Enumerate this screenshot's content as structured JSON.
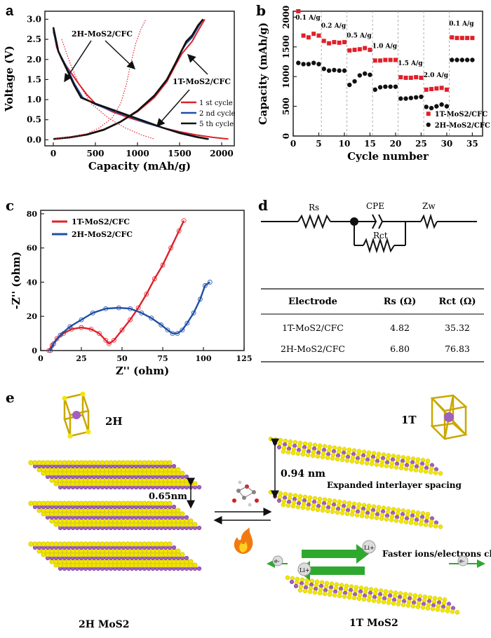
{
  "colors": {
    "red": "#e0202a",
    "blue": "#1f4fa8",
    "black": "#111111",
    "yellow": "#f2e600",
    "purple": "#a060c0",
    "green": "#2fa82f"
  },
  "chart_data": [
    {
      "panel": "a",
      "type": "line",
      "xlabel": "Capacity (mAh/g)",
      "ylabel": "Voltage (V)",
      "xlim": [
        -100,
        2150
      ],
      "ylim": [
        -0.15,
        3.2
      ],
      "xticks": [
        "0",
        "500",
        "1000",
        "1500",
        "2000"
      ],
      "yticks": [
        "0.0",
        "0.5",
        "1.0",
        "1.5",
        "2.0",
        "2.5",
        "3.0"
      ],
      "annotations": [
        "2H-MoS2/CFC",
        "1T-MoS2/CFC"
      ],
      "legend_position": "bottom-right",
      "series": [
        {
          "name": "1 st cycle",
          "color": "#e0202a",
          "discharge": [
            [
              0,
              2.75
            ],
            [
              40,
              2.3
            ],
            [
              100,
              2.0
            ],
            [
              200,
              1.7
            ],
            [
              300,
              1.4
            ],
            [
              400,
              1.12
            ],
            [
              500,
              0.9
            ],
            [
              700,
              0.7
            ],
            [
              900,
              0.55
            ],
            [
              1100,
              0.42
            ],
            [
              1300,
              0.3
            ],
            [
              1500,
              0.2
            ],
            [
              1700,
              0.12
            ],
            [
              1900,
              0.06
            ],
            [
              2080,
              0.02
            ]
          ],
          "charge": [
            [
              0,
              0.02
            ],
            [
              200,
              0.07
            ],
            [
              400,
              0.14
            ],
            [
              600,
              0.26
            ],
            [
              800,
              0.45
            ],
            [
              1000,
              0.7
            ],
            [
              1200,
              1.05
            ],
            [
              1350,
              1.45
            ],
            [
              1450,
              1.85
            ],
            [
              1530,
              2.15
            ],
            [
              1590,
              2.3
            ],
            [
              1650,
              2.45
            ],
            [
              1730,
              2.75
            ],
            [
              1800,
              3.0
            ]
          ]
        },
        {
          "name": "2 nd cycle",
          "color": "#1f4fa8",
          "discharge": [
            [
              0,
              2.7
            ],
            [
              60,
              2.2
            ],
            [
              150,
              1.85
            ],
            [
              250,
              1.4
            ],
            [
              350,
              1.05
            ],
            [
              500,
              0.88
            ],
            [
              700,
              0.72
            ],
            [
              900,
              0.58
            ],
            [
              1100,
              0.42
            ],
            [
              1300,
              0.3
            ],
            [
              1500,
              0.18
            ],
            [
              1700,
              0.08
            ],
            [
              1850,
              0.02
            ]
          ],
          "charge": [
            [
              0,
              0.02
            ],
            [
              200,
              0.06
            ],
            [
              400,
              0.13
            ],
            [
              600,
              0.25
            ],
            [
              800,
              0.45
            ],
            [
              1000,
              0.72
            ],
            [
              1200,
              1.1
            ],
            [
              1350,
              1.5
            ],
            [
              1450,
              1.9
            ],
            [
              1520,
              2.2
            ],
            [
              1580,
              2.4
            ],
            [
              1650,
              2.55
            ],
            [
              1720,
              2.8
            ],
            [
              1780,
              3.0
            ]
          ]
        },
        {
          "name": "5 th cycle",
          "color": "#111111",
          "discharge": [
            [
              0,
              2.8
            ],
            [
              60,
              2.2
            ],
            [
              150,
              1.8
            ],
            [
              250,
              1.35
            ],
            [
              330,
              1.05
            ],
            [
              500,
              0.9
            ],
            [
              700,
              0.75
            ],
            [
              900,
              0.6
            ],
            [
              1100,
              0.45
            ],
            [
              1300,
              0.3
            ],
            [
              1500,
              0.17
            ],
            [
              1700,
              0.07
            ],
            [
              1840,
              0.02
            ]
          ],
          "charge": [
            [
              0,
              0.02
            ],
            [
              200,
              0.06
            ],
            [
              400,
              0.13
            ],
            [
              600,
              0.25
            ],
            [
              800,
              0.45
            ],
            [
              1000,
              0.72
            ],
            [
              1200,
              1.1
            ],
            [
              1350,
              1.5
            ],
            [
              1450,
              1.9
            ],
            [
              1520,
              2.2
            ],
            [
              1580,
              2.45
            ],
            [
              1650,
              2.6
            ],
            [
              1720,
              2.85
            ],
            [
              1780,
              3.0
            ]
          ]
        },
        {
          "name": "2H dotted",
          "color": "#e0202a",
          "style": "dotted",
          "discharge": [
            [
              100,
              2.5
            ],
            [
              200,
              1.9
            ],
            [
              300,
              1.4
            ],
            [
              450,
              0.9
            ],
            [
              650,
              0.55
            ],
            [
              850,
              0.3
            ],
            [
              1050,
              0.12
            ],
            [
              1200,
              0.02
            ]
          ],
          "charge": [
            [
              0,
              0.02
            ],
            [
              200,
              0.06
            ],
            [
              400,
              0.15
            ],
            [
              550,
              0.3
            ],
            [
              700,
              0.55
            ],
            [
              800,
              0.9
            ],
            [
              870,
              1.4
            ],
            [
              920,
              1.9
            ],
            [
              980,
              2.4
            ],
            [
              1040,
              2.75
            ],
            [
              1100,
              3.0
            ]
          ]
        }
      ]
    },
    {
      "panel": "b",
      "type": "scatter",
      "xlabel": "Cycle number",
      "ylabel": "Capacity (mAh/g)",
      "xlim": [
        0,
        37
      ],
      "ylim": [
        0,
        2100
      ],
      "xticks": [
        "0",
        "5",
        "10",
        "15",
        "20",
        "25",
        "30",
        "35"
      ],
      "yticks": [
        "0",
        "500",
        "1000",
        "1500",
        "2000"
      ],
      "rate_labels": [
        "0.1 A/g",
        "0.2 A/g",
        "0.5 A/g",
        "1.0 A/g",
        "1.5 A/g",
        "2.0 A/g",
        "0.1 A/g"
      ],
      "legend_position": "bottom-right",
      "series": [
        {
          "name": "1T-MoS2/CFC",
          "marker": "square",
          "color": "#e0202a",
          "values": [
            2100,
            1690,
            1660,
            1720,
            1690,
            1600,
            1560,
            1580,
            1570,
            1580,
            1440,
            1450,
            1460,
            1480,
            1450,
            1270,
            1270,
            1280,
            1280,
            1280,
            990,
            980,
            980,
            990,
            980,
            780,
            790,
            800,
            810,
            780,
            1660,
            1650,
            1650,
            1650,
            1650
          ]
        },
        {
          "name": "2H-MoS2/CFC",
          "marker": "circle",
          "color": "#111111",
          "values": [
            1230,
            1210,
            1210,
            1230,
            1210,
            1130,
            1100,
            1110,
            1100,
            1100,
            860,
            920,
            1020,
            1050,
            1030,
            780,
            820,
            830,
            830,
            830,
            630,
            630,
            640,
            650,
            660,
            490,
            470,
            500,
            530,
            500,
            1280,
            1280,
            1280,
            1280,
            1280
          ]
        }
      ]
    },
    {
      "panel": "c",
      "type": "line",
      "xlabel": "Z'' (ohm)",
      "ylabel": "-Z'' (ohm)",
      "xlim": [
        0,
        125
      ],
      "ylim": [
        0,
        82
      ],
      "xticks": [
        "0",
        "25",
        "50",
        "75",
        "100",
        "125"
      ],
      "yticks": [
        "0",
        "20",
        "40",
        "60",
        "80"
      ],
      "legend_position": "top-left",
      "series": [
        {
          "name": "1T-MoS2/CFC",
          "color": "#e0202a",
          "points": [
            [
              5,
              0
            ],
            [
              7,
              3
            ],
            [
              10,
              7
            ],
            [
              14,
              10
            ],
            [
              19,
              12.5
            ],
            [
              25,
              13.5
            ],
            [
              31,
              12.5
            ],
            [
              36,
              10
            ],
            [
              40,
              6
            ],
            [
              42,
              4
            ],
            [
              45,
              6
            ],
            [
              50,
              12
            ],
            [
              55,
              18
            ],
            [
              60,
              25
            ],
            [
              65,
              33
            ],
            [
              70,
              42
            ],
            [
              75,
              50
            ],
            [
              80,
              60
            ],
            [
              85,
              70
            ],
            [
              88,
              76
            ]
          ]
        },
        {
          "name": "2H-MoS2/CFC",
          "color": "#1f4fa8",
          "points": [
            [
              6,
              0
            ],
            [
              8,
              4
            ],
            [
              12,
              9
            ],
            [
              18,
              14
            ],
            [
              25,
              18
            ],
            [
              32,
              22
            ],
            [
              40,
              24.5
            ],
            [
              48,
              25
            ],
            [
              55,
              24.5
            ],
            [
              62,
              22
            ],
            [
              68,
              19
            ],
            [
              74,
              15
            ],
            [
              78,
              12
            ],
            [
              81,
              10
            ],
            [
              84,
              10
            ],
            [
              87,
              12
            ],
            [
              90,
              16
            ],
            [
              94,
              22
            ],
            [
              98,
              30
            ],
            [
              101,
              38
            ],
            [
              104,
              40
            ]
          ]
        }
      ]
    }
  ],
  "panel_labels": {
    "a": "a",
    "b": "b",
    "c": "c",
    "d": "d",
    "e": "e"
  },
  "circuit": {
    "rs": "Rs",
    "cpe": "CPE",
    "zw": "Zw",
    "rct": "Rct"
  },
  "table": {
    "headers": [
      "Electrode",
      "Rs (Ω)",
      "Rct (Ω)"
    ],
    "rows": [
      [
        "1T-MoS2/CFC",
        "4.82",
        "35.32"
      ],
      [
        "2H-MoS2/CFC",
        "6.80",
        "76.83"
      ]
    ]
  },
  "panel_e": {
    "phase_2h": "2H",
    "phase_1t": "1T",
    "spacing_2h": "0.65nm",
    "spacing_1t": "0.94 nm",
    "expanded_text": "Expanded interlayer spacing",
    "channel_text": "Faster ions/electrons channel",
    "li_label": "Li+",
    "e_label": "e-",
    "caption_2h": "2H MoS2",
    "caption_1t": "1T MoS2"
  }
}
